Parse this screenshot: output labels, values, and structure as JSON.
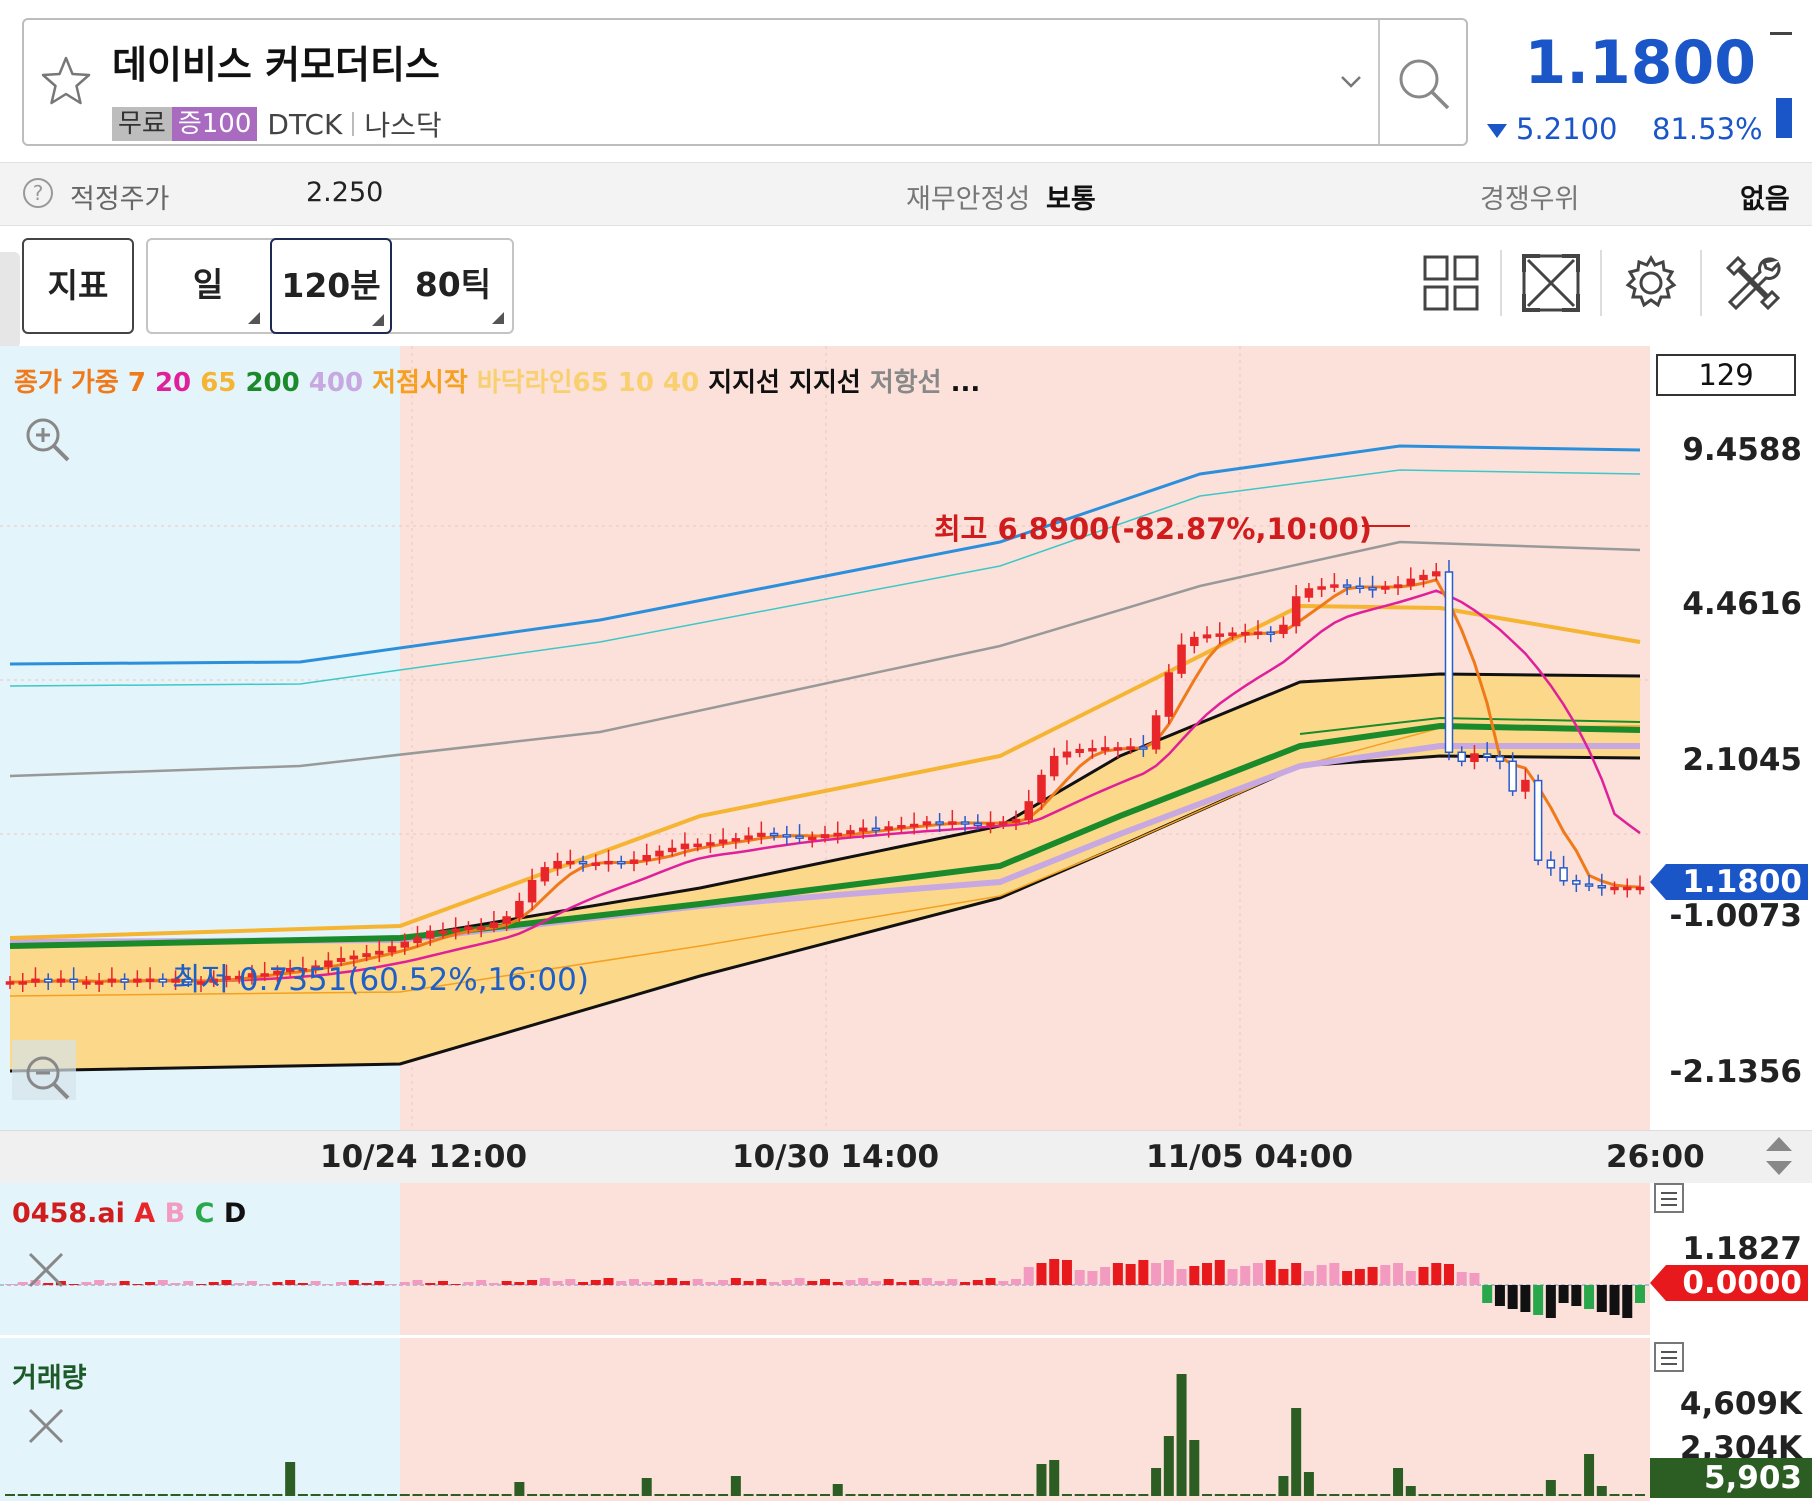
{
  "header": {
    "title": "데이비스 커모더티스",
    "tag_free": "무료",
    "tag_margin": "증100",
    "ticker": "DTCK",
    "exchange": "나스닥",
    "price": "1.1800",
    "change": "5.2100",
    "change_pct": "81.53%",
    "change_color": "#1a56c8"
  },
  "info": {
    "fair_price_label": "적정주가",
    "fair_price_value": "2.250",
    "stability_label": "재무안정성",
    "stability_value": "보통",
    "competitive_label": "경쟁우위",
    "competitive_value": "없음"
  },
  "toolbar": {
    "indicator_label": "지표",
    "period_day": "일",
    "period_120m": "120분",
    "period_80tick": "80틱"
  },
  "legend": [
    {
      "text": "종가",
      "color": "#f07a1a"
    },
    {
      "text": "가중",
      "color": "#f07a1a"
    },
    {
      "text": "7",
      "color": "#f07a1a"
    },
    {
      "text": "20",
      "color": "#e0209a"
    },
    {
      "text": "65",
      "color": "#f5b431"
    },
    {
      "text": "200",
      "color": "#1a8a2a"
    },
    {
      "text": "400",
      "color": "#c8a8e0"
    },
    {
      "text": "저점시작",
      "color": "#f5a020"
    },
    {
      "text": "바닥라인65 10 40",
      "color": "#f8d070"
    },
    {
      "text": "지지선",
      "color": "#111111"
    },
    {
      "text": "지지선",
      "color": "#111111"
    },
    {
      "text": "저항선",
      "color": "#888888"
    },
    {
      "text": "...",
      "color": "#111111"
    }
  ],
  "chart": {
    "candle_count_box": "129",
    "y_labels": [
      "9.4588",
      "4.4616",
      "2.1045",
      "-1.0073",
      "-2.1356"
    ],
    "current_price_tag": "1.1800",
    "high_annotation": "최고 6.8900(-82.87%,10:00)",
    "low_annotation": "최저 0.7351(60.52%,16:00)",
    "x_labels": [
      "10/24 12:00",
      "10/30 14:00",
      "11/05 04:00",
      "26:00"
    ],
    "colors": {
      "up": "#e8262a",
      "down": "#2a5bc8",
      "bg_main": "#fbe1da",
      "bg_left": "#e3f4fa",
      "band": "#fcd98a"
    }
  },
  "indicator_panel": {
    "title": "0458.ai",
    "letters": [
      {
        "text": "A",
        "color": "#e8262a"
      },
      {
        "text": "B",
        "color": "#f29ac0"
      },
      {
        "text": "C",
        "color": "#28a84a"
      },
      {
        "text": "D",
        "color": "#111111"
      }
    ],
    "y_top": "1.1827",
    "zero_tag": "0.0000"
  },
  "volume_panel": {
    "title": "거래량",
    "y_top": "4,609K",
    "y_mid": "2,304K",
    "current_tag": "5,903"
  },
  "chart_data": {
    "type": "candlestick",
    "price_scale": "log",
    "x_ticks": [
      "10/24 12:00",
      "10/30 14:00",
      "11/05 04:00",
      "26:00"
    ],
    "y_ticks": [
      9.4588,
      4.4616,
      2.1045,
      -1.0073,
      -2.1356
    ],
    "high": {
      "value": 6.89,
      "label": "최고 6.8900(-82.87%,10:00)"
    },
    "low": {
      "value": 0.7351,
      "label": "최저 0.7351(60.52%,16:00)"
    },
    "last_price": 1.18,
    "close_approx": [
      0.74,
      0.74,
      0.75,
      0.74,
      0.75,
      0.74,
      0.74,
      0.74,
      0.75,
      0.74,
      0.75,
      0.75,
      0.74,
      0.75,
      0.74,
      0.74,
      0.75,
      0.76,
      0.76,
      0.77,
      0.77,
      0.78,
      0.79,
      0.79,
      0.8,
      0.82,
      0.83,
      0.84,
      0.85,
      0.86,
      0.88,
      0.9,
      0.92,
      0.95,
      0.95,
      0.96,
      0.97,
      0.97,
      0.99,
      1.02,
      1.1,
      1.22,
      1.3,
      1.34,
      1.34,
      1.33,
      1.33,
      1.34,
      1.33,
      1.35,
      1.38,
      1.41,
      1.43,
      1.46,
      1.46,
      1.47,
      1.49,
      1.5,
      1.52,
      1.54,
      1.53,
      1.52,
      1.51,
      1.51,
      1.53,
      1.54,
      1.56,
      1.58,
      1.57,
      1.59,
      1.6,
      1.61,
      1.63,
      1.62,
      1.63,
      1.62,
      1.61,
      1.62,
      1.63,
      1.65,
      1.8,
      2.05,
      2.25,
      2.3,
      2.33,
      2.34,
      2.35,
      2.35,
      2.36,
      2.34,
      2.75,
      3.4,
      3.9,
      4.05,
      4.1,
      4.12,
      4.14,
      4.15,
      4.16,
      4.14,
      4.3,
      4.95,
      5.15,
      5.2,
      5.25,
      5.22,
      5.18,
      5.15,
      5.2,
      5.25,
      5.4,
      5.5,
      5.6,
      2.3,
      2.2,
      2.28,
      2.25,
      2.2,
      1.9,
      2.0,
      1.35,
      1.3,
      1.22,
      1.2,
      1.19,
      1.18,
      1.18,
      1.18,
      1.18
    ]
  }
}
